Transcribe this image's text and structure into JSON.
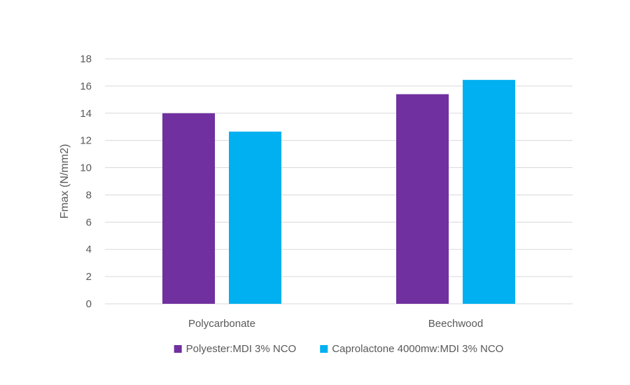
{
  "chart_data": {
    "type": "bar",
    "title": "",
    "xlabel": "",
    "ylabel": "Fmax (N/mm2)",
    "categories": [
      "Polycarbonate",
      "Beechwood"
    ],
    "series": [
      {
        "name": "Polyester:MDI 3% NCO",
        "values": [
          14.0,
          15.4
        ],
        "color": "#7030A0"
      },
      {
        "name": "Caprolactone 4000mw:MDI 3% NCO",
        "values": [
          12.65,
          16.45
        ],
        "color": "#00B0F0"
      }
    ],
    "ylim": [
      0,
      18
    ],
    "yticks": [
      "0",
      "2",
      "4",
      "6",
      "8",
      "10",
      "12",
      "14",
      "16",
      "18"
    ],
    "grid": true,
    "legend_position": "bottom",
    "colors": {
      "gridline": "#D9D9D9",
      "text": "#595959"
    }
  }
}
